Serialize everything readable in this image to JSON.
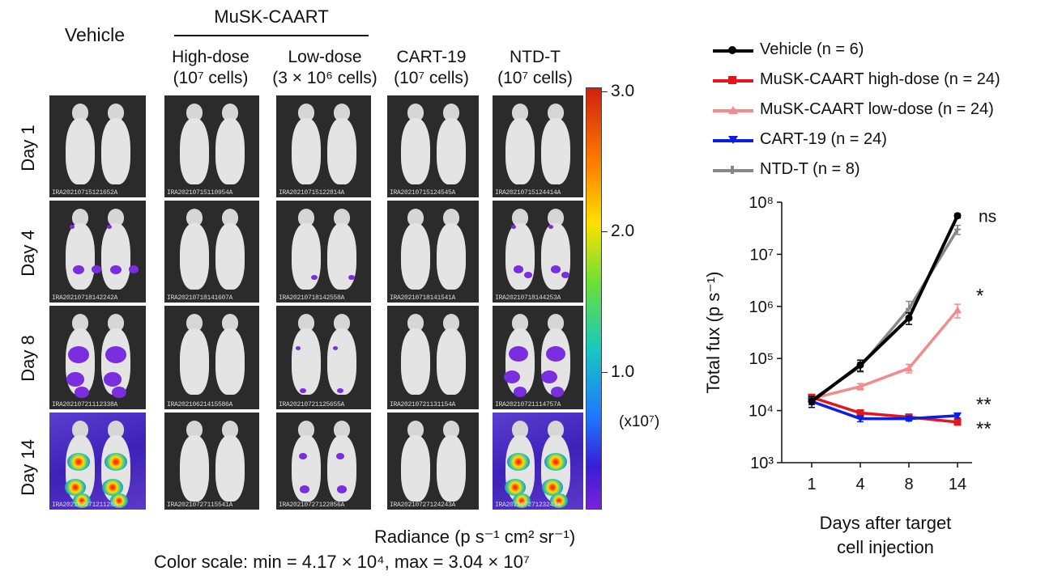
{
  "figure": {
    "vehicle_label": "Vehicle",
    "musk_caart_label": "MuSK-CAART",
    "columns": [
      {
        "line1": "High-dose",
        "line2": "(10⁷ cells)"
      },
      {
        "line1": "Low-dose",
        "line2": "(3 × 10⁶ cells)"
      },
      {
        "line1": "CART-19",
        "line2": "(10⁷ cells)"
      },
      {
        "line1": "NTD-T",
        "line2": "(10⁷ cells)"
      }
    ],
    "rows": [
      "Day 1",
      "Day 4",
      "Day 8",
      "Day 14"
    ],
    "image_ids": [
      [
        "IRA20210715121652A",
        "IRA20210715110954A",
        "IRA20210715122814A",
        "IRA20210715124545A",
        "IRA20210715124414A"
      ],
      [
        "IRA20210718142242A",
        "IRA20210718141607A",
        "IRA20210718142558A",
        "IRA20210718141541A",
        "IRA20210718144253A"
      ],
      [
        "IRA20210721112338A",
        "IRA20210621415586A",
        "IRA20210721125655A",
        "IRA20210721131154A",
        "IRA20210721114757A"
      ],
      [
        "IRA20210727121128A",
        "IRA20210727115541A",
        "IRA20210727122856A",
        "IRA20210727124243A",
        "IRA20210727123243A"
      ]
    ],
    "colorbar": {
      "ticks": [
        "3.0",
        "2.0",
        "1.0"
      ],
      "unit": "(x10⁷)",
      "radiance_label": "Radiance (p s⁻¹ cm² sr⁻¹)",
      "scale_label": "Color scale: min = 4.17 × 10⁴, max = 3.04 × 10⁷"
    }
  },
  "chart_data": {
    "type": "line",
    "x": [
      "1",
      "4",
      "8",
      "14"
    ],
    "xlabel_line1": "Days after target",
    "xlabel_line2": "cell injection",
    "ylabel": "Total fux (p s⁻¹)",
    "yscale": "log",
    "ylim": [
      1000,
      100000000
    ],
    "ytick_labels": [
      "10³",
      "10⁴",
      "10⁵",
      "10⁶",
      "10⁷",
      "10⁸"
    ],
    "legend_position": "top",
    "series": [
      {
        "name": "Vehicle (n = 6)",
        "color": "#000000",
        "marker": "circle",
        "values": [
          15000,
          75000,
          600000,
          55000000
        ],
        "errors": [
          3500,
          18000,
          150000,
          5000000
        ],
        "significance": "ns"
      },
      {
        "name": "MuSK-CAART high-dose (n = 24)",
        "color": "#e8141c",
        "marker": "square",
        "values": [
          18000,
          9000,
          7500,
          6000
        ],
        "errors": [
          2000,
          1200,
          800,
          600
        ],
        "significance": "**"
      },
      {
        "name": "MuSK-CAART low-dose (n = 24)",
        "color": "#f08c8c",
        "marker": "triangle-up",
        "values": [
          17000,
          29000,
          65000,
          850000
        ],
        "errors": [
          2000,
          4000,
          12000,
          250000
        ],
        "significance": "*"
      },
      {
        "name": "CART-19 (n = 24)",
        "color": "#0a1ee6",
        "marker": "triangle-down",
        "values": [
          15000,
          7000,
          7000,
          8000
        ],
        "errors": [
          2000,
          900,
          700,
          800
        ],
        "significance": "**"
      },
      {
        "name": "NTD-T (n = 8)",
        "color": "#888888",
        "marker": "plus",
        "values": [
          16000,
          70000,
          900000,
          30000000
        ],
        "errors": [
          3000,
          15000,
          350000,
          6000000
        ],
        "significance": ""
      }
    ]
  }
}
